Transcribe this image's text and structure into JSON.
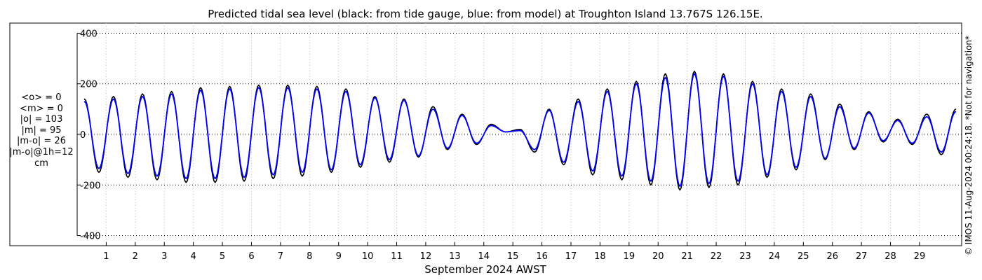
{
  "chart_data": {
    "type": "line",
    "title": "Predicted tidal sea level (black: from tide gauge, blue: from model) at Troughton Island 13.767S 126.15E.",
    "xlabel": "September 2024 AWST",
    "ylabel": "",
    "x_unit": "day of September 2024",
    "xlim": [
      0,
      30.45
    ],
    "ylim": [
      -440,
      440
    ],
    "x_ticks": [
      1,
      2,
      3,
      4,
      5,
      6,
      7,
      8,
      9,
      10,
      11,
      12,
      13,
      14,
      15,
      16,
      17,
      18,
      19,
      20,
      21,
      22,
      23,
      24,
      25,
      26,
      27,
      28,
      29
    ],
    "x_tick_labels": [
      "1",
      "2",
      "3",
      "4",
      "5",
      "6",
      "7",
      "8",
      "9",
      "10",
      "11",
      "12",
      "13",
      "14",
      "15",
      "16",
      "17",
      "18",
      "19",
      "20",
      "21",
      "22",
      "23",
      "24",
      "25",
      "26",
      "27",
      "28",
      "29"
    ],
    "y_ticks": [
      -400,
      -200,
      0,
      200,
      400
    ],
    "y_tick_labels": [
      "-400",
      "-200",
      "0",
      "200",
      "400"
    ],
    "grid": "dotted: horizontal at y ticks, vertical at each day",
    "series": [
      {
        "description": "from tide gauge",
        "color": "#000000",
        "x": [
          0.25,
          0.75,
          1.25,
          1.75,
          2.25,
          2.75,
          3.25,
          3.75,
          4.25,
          4.75,
          5.25,
          5.75,
          6.25,
          6.75,
          7.25,
          7.75,
          8.25,
          8.75,
          9.25,
          9.75,
          10.25,
          10.75,
          11.25,
          11.75,
          12.25,
          12.75,
          13.25,
          13.75,
          14.25,
          14.75,
          15.25,
          15.75,
          16.25,
          16.75,
          17.25,
          17.75,
          18.25,
          18.75,
          19.25,
          19.75,
          20.25,
          20.75,
          21.25,
          21.75,
          22.25,
          22.75,
          23.25,
          23.75,
          24.25,
          24.75,
          25.25,
          25.75,
          26.25,
          26.75,
          27.25,
          27.75,
          28.25,
          28.75,
          29.25,
          29.75,
          30.25
        ],
        "y": [
          140,
          -150,
          150,
          -170,
          160,
          -180,
          170,
          -190,
          185,
          -190,
          190,
          -185,
          195,
          -175,
          195,
          -165,
          190,
          -150,
          180,
          -130,
          150,
          -110,
          140,
          -90,
          110,
          -60,
          80,
          -40,
          40,
          10,
          20,
          -70,
          100,
          -120,
          140,
          -160,
          180,
          -180,
          210,
          -200,
          240,
          -220,
          250,
          -210,
          240,
          -200,
          210,
          -170,
          180,
          -140,
          160,
          -100,
          120,
          -60,
          90,
          -30,
          60,
          -40,
          80,
          -80,
          100
        ]
      },
      {
        "description": "from model",
        "color": "#0000ff",
        "x": [
          0.25,
          0.75,
          1.25,
          1.75,
          2.25,
          2.75,
          3.25,
          3.75,
          4.25,
          4.75,
          5.25,
          5.75,
          6.25,
          6.75,
          7.25,
          7.75,
          8.25,
          8.75,
          9.25,
          9.75,
          10.25,
          10.75,
          11.25,
          11.75,
          12.25,
          12.75,
          13.25,
          13.75,
          14.25,
          14.75,
          15.25,
          15.75,
          16.25,
          16.75,
          17.25,
          17.75,
          18.25,
          18.75,
          19.25,
          19.75,
          20.25,
          20.75,
          21.25,
          21.75,
          22.25,
          22.75,
          23.25,
          23.75,
          24.25,
          24.75,
          25.25,
          25.75,
          26.25,
          26.75,
          27.25,
          27.75,
          28.25,
          28.75,
          29.25,
          29.75,
          30.25
        ],
        "y": [
          130,
          -135,
          140,
          -155,
          150,
          -165,
          160,
          -175,
          175,
          -175,
          180,
          -170,
          185,
          -160,
          185,
          -150,
          180,
          -140,
          170,
          -120,
          145,
          -100,
          135,
          -85,
          100,
          -55,
          75,
          -35,
          35,
          10,
          15,
          -60,
          95,
          -110,
          130,
          -145,
          170,
          -165,
          200,
          -185,
          225,
          -205,
          240,
          -195,
          230,
          -185,
          200,
          -160,
          170,
          -130,
          150,
          -95,
          110,
          -55,
          85,
          -25,
          55,
          -35,
          70,
          -70,
          90
        ]
      }
    ]
  },
  "stats": {
    "mean_obs": "<o> = 0",
    "mean_model": "<m> = 0",
    "abs_obs": "|o| = 103",
    "abs_model": "|m| = 95",
    "abs_diff": "|m-o| = 26",
    "abs_diff_1h": "|m-o|@1h=12",
    "unit": "cm"
  },
  "credit": "© IMOS 11-Aug-2024 00:24:18. *Not for navigation*"
}
